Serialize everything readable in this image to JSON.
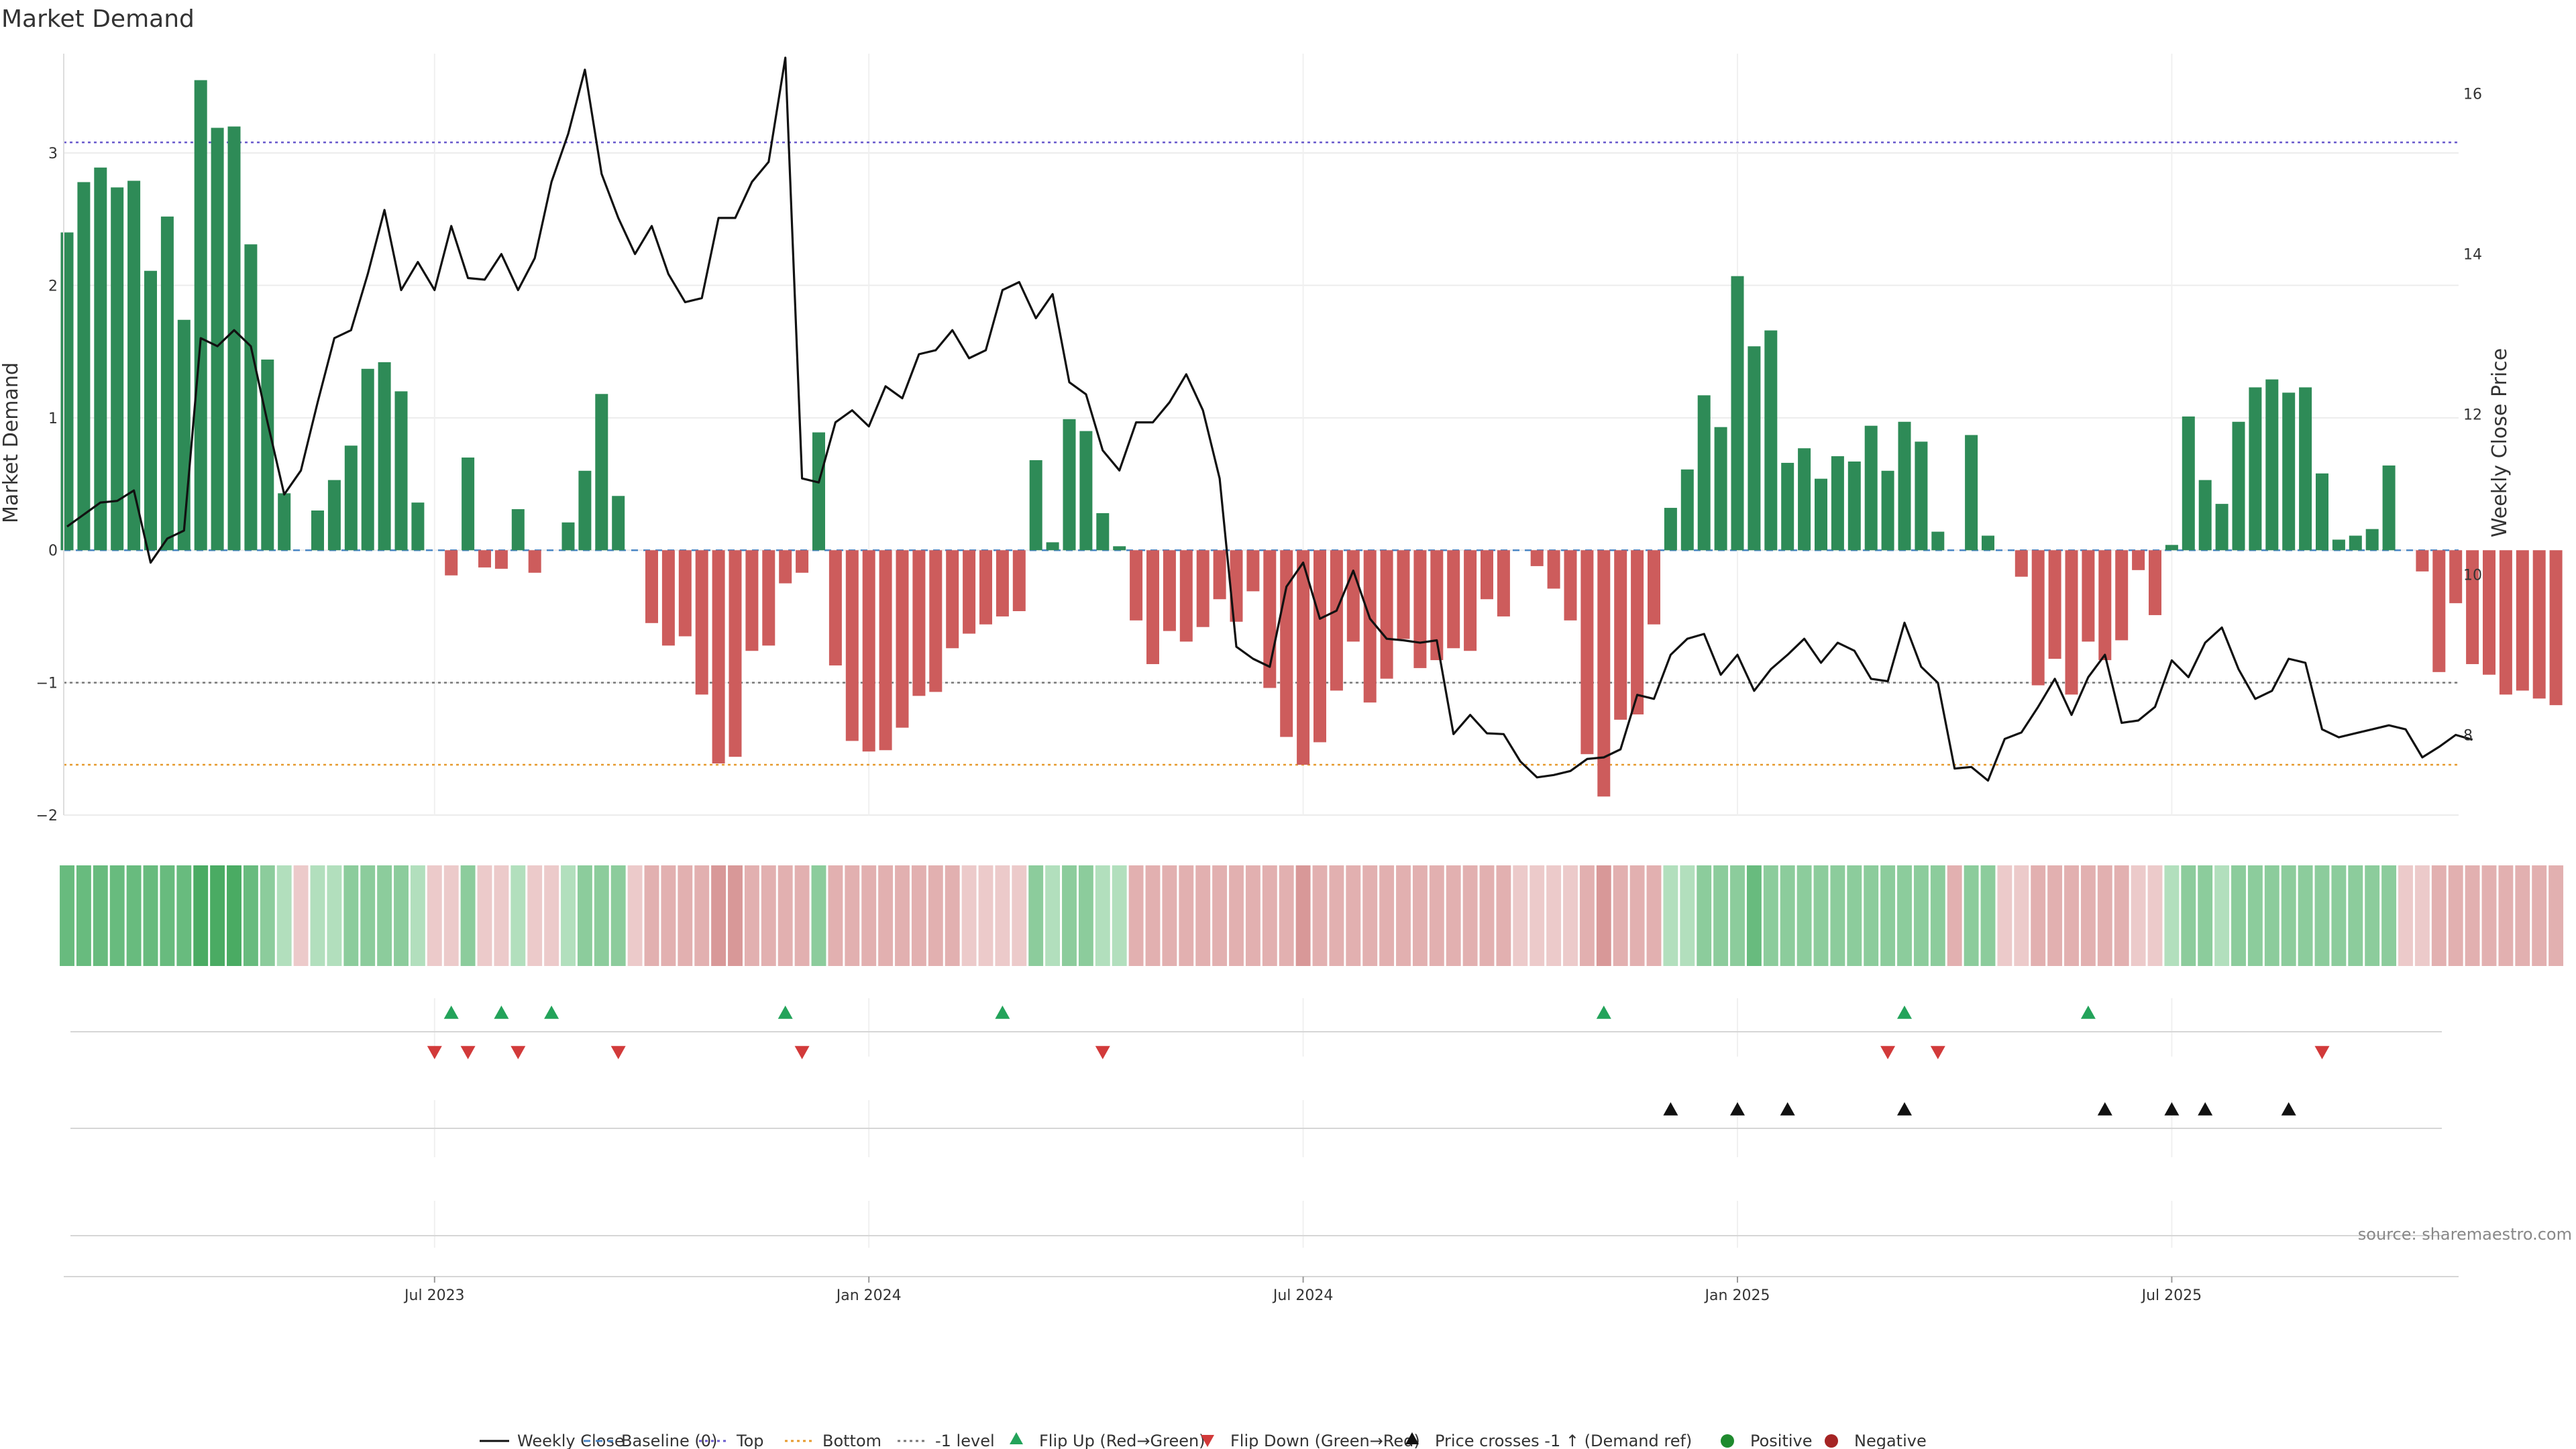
{
  "chart_data": {
    "type": "bar",
    "title": "Market Demand",
    "ylabel_left": "Market Demand",
    "ylabel_right": "Weekly Close Price",
    "source": "source: sharemaestro.com",
    "left_ylim": [
      -2.0,
      3.75
    ],
    "right_ylim": [
      7.0,
      16.5
    ],
    "left_ticks": [
      {
        "v": 3,
        "label": "3"
      },
      {
        "v": 2,
        "label": "2"
      },
      {
        "v": 1,
        "label": "1"
      },
      {
        "v": 0,
        "label": "0"
      },
      {
        "v": -1,
        "label": "−1"
      },
      {
        "v": -2,
        "label": "−2"
      }
    ],
    "right_ticks": [
      {
        "v": 16,
        "label": "16"
      },
      {
        "v": 14,
        "label": "14"
      },
      {
        "v": 12,
        "label": "12"
      },
      {
        "v": 10,
        "label": "10"
      },
      {
        "v": 8,
        "label": "8"
      }
    ],
    "x_ticks": [
      {
        "i": 22,
        "label": "Jul 2023"
      },
      {
        "i": 48,
        "label": "Jan 2024"
      },
      {
        "i": 74,
        "label": "Jul 2024"
      },
      {
        "i": 100,
        "label": "Jan 2025"
      },
      {
        "i": 126,
        "label": "Jul 2025"
      }
    ],
    "reference_lines": {
      "top": 3.08,
      "bottom": -1.62,
      "minus_one": -1.0
    },
    "demand": [
      2.4,
      2.78,
      2.89,
      2.74,
      2.79,
      2.11,
      2.52,
      1.74,
      3.55,
      3.19,
      3.2,
      2.31,
      1.44,
      0.43,
      0.0,
      0.3,
      0.53,
      0.79,
      1.37,
      1.42,
      1.2,
      0.36,
      0.0,
      -0.19,
      0.7,
      -0.13,
      -0.14,
      0.31,
      -0.17,
      0.0,
      0.21,
      0.6,
      1.18,
      0.41,
      0.0,
      -0.55,
      -0.72,
      -0.65,
      -1.09,
      -1.61,
      -1.56,
      -0.76,
      -0.72,
      -0.25,
      -0.17,
      0.89,
      -0.87,
      -1.44,
      -1.52,
      -1.51,
      -1.34,
      -1.1,
      -1.07,
      -0.74,
      -0.63,
      -0.56,
      -0.5,
      -0.46,
      0.68,
      0.06,
      0.99,
      0.9,
      0.28,
      0.03,
      -0.53,
      -0.86,
      -0.61,
      -0.69,
      -0.58,
      -0.37,
      -0.54,
      -0.31,
      -1.04,
      -1.41,
      -1.62,
      -1.45,
      -1.06,
      -0.69,
      -1.15,
      -0.97,
      -0.67,
      -0.89,
      -0.83,
      -0.74,
      -0.76,
      -0.37,
      -0.5,
      0.0,
      -0.12,
      -0.29,
      -0.53,
      -1.54,
      -1.86,
      -1.28,
      -1.24,
      -0.56,
      0.32,
      0.61,
      1.17,
      0.93,
      2.07,
      1.54,
      1.66,
      0.66,
      0.77,
      0.54,
      0.71,
      0.67,
      0.94,
      0.6,
      0.97,
      0.82,
      0.14,
      0.0,
      0.87,
      0.11,
      0.0,
      -0.2,
      -1.02,
      -0.82,
      -1.09,
      -0.69,
      -0.83,
      -0.68,
      -0.15,
      -0.49,
      0.04,
      1.01,
      0.53,
      0.35,
      0.97,
      1.23,
      1.29,
      1.19,
      1.23,
      0.58,
      0.08,
      0.11,
      0.16,
      0.64,
      0.0,
      -0.16,
      -0.92,
      -0.4,
      -0.86,
      -0.94,
      -1.09,
      -1.06,
      -1.12,
      -1.17
    ],
    "intensity": [
      3,
      3,
      3,
      3,
      3,
      3,
      3,
      3,
      4,
      4,
      4,
      3,
      2,
      1,
      1,
      1,
      1,
      2,
      2,
      2,
      2,
      1,
      1,
      1,
      2,
      1,
      1,
      1,
      1,
      1,
      1,
      2,
      2,
      2,
      1,
      2,
      2,
      2,
      2,
      3,
      3,
      2,
      2,
      2,
      2,
      2,
      2,
      2,
      2,
      2,
      2,
      2,
      2,
      2,
      1,
      1,
      1,
      1,
      2,
      1,
      2,
      2,
      1,
      1,
      2,
      2,
      2,
      2,
      2,
      2,
      2,
      2,
      2,
      2,
      3,
      2,
      2,
      2,
      2,
      2,
      2,
      2,
      2,
      2,
      2,
      2,
      2,
      1,
      1,
      1,
      1,
      2,
      3,
      2,
      2,
      2,
      1,
      1,
      2,
      2,
      2,
      3,
      2,
      2,
      2,
      2,
      2,
      2,
      2,
      2,
      2,
      2,
      2,
      2,
      2,
      2,
      1,
      1,
      2,
      2,
      2,
      2,
      2,
      2,
      1,
      1,
      1,
      2,
      2,
      1,
      2,
      2,
      2,
      2,
      2,
      2,
      2,
      2,
      2,
      2,
      1,
      1,
      2,
      2,
      2,
      2,
      2,
      2,
      2,
      2
    ],
    "price": [
      10.6,
      10.75,
      10.9,
      10.92,
      11.05,
      10.15,
      10.45,
      10.55,
      12.95,
      12.85,
      13.05,
      12.85,
      11.9,
      11.0,
      11.3,
      12.15,
      12.95,
      13.05,
      13.75,
      14.55,
      13.55,
      13.9,
      13.55,
      14.35,
      13.7,
      13.68,
      14.0,
      13.55,
      13.95,
      14.9,
      15.5,
      16.3,
      15.0,
      14.45,
      14.0,
      14.35,
      13.75,
      13.4,
      13.45,
      14.45,
      14.45,
      14.9,
      15.15,
      16.45,
      11.2,
      11.15,
      11.9,
      12.05,
      11.85,
      12.35,
      12.2,
      12.75,
      12.8,
      13.05,
      12.7,
      12.8,
      13.55,
      13.65,
      13.2,
      13.5,
      12.4,
      12.25,
      11.55,
      11.3,
      11.9,
      11.9,
      12.15,
      12.5,
      12.05,
      11.2,
      9.1,
      8.95,
      8.85,
      9.85,
      10.15,
      9.45,
      9.55,
      10.05,
      9.45,
      9.2,
      9.18,
      9.15,
      9.18,
      8.01,
      8.25,
      8.02,
      8.01,
      7.67,
      7.47,
      7.5,
      7.55,
      7.7,
      7.72,
      7.82,
      8.5,
      8.45,
      9.0,
      9.2,
      9.26,
      8.75,
      9.0,
      8.55,
      8.82,
      9.0,
      9.2,
      8.9,
      9.15,
      9.05,
      8.7,
      8.67,
      9.4,
      8.85,
      8.65,
      7.58,
      7.6,
      7.43,
      7.95,
      8.03,
      8.35,
      8.7,
      8.25,
      8.72,
      9.0,
      8.15,
      8.18,
      8.35,
      8.93,
      8.72,
      9.15,
      9.34,
      8.82,
      8.45,
      8.55,
      8.95,
      8.9,
      8.07,
      7.97,
      8.02,
      8.07,
      8.12,
      8.07,
      7.72,
      7.85,
      8.0,
      7.94
    ],
    "flip_up": [
      23,
      26,
      29,
      43,
      56,
      92,
      110,
      121
    ],
    "flip_down": [
      22,
      24,
      27,
      33,
      44,
      62,
      109,
      112,
      135
    ],
    "price_cross": [
      96,
      100,
      103,
      110,
      122,
      126,
      128,
      133
    ],
    "legend": [
      {
        "key": "weekly_close",
        "label": "Weekly Close"
      },
      {
        "key": "baseline",
        "label": "Baseline (0)"
      },
      {
        "key": "top",
        "label": "Top"
      },
      {
        "key": "bottom",
        "label": "Bottom"
      },
      {
        "key": "minus_one",
        "label": "-1 level"
      },
      {
        "key": "flip_up",
        "label": "Flip Up (Red→Green)"
      },
      {
        "key": "flip_down",
        "label": "Flip Down (Green→Red)"
      },
      {
        "key": "price_cross",
        "label": "Price crosses -1 ↑ (Demand ref)"
      },
      {
        "key": "positive",
        "label": "Positive"
      },
      {
        "key": "negative",
        "label": "Negative"
      }
    ],
    "colors": {
      "pos_bar": "#2e8b57",
      "neg_bar": "#cd5c5c",
      "price": "#111111",
      "top": "#6a5acd",
      "bottom": "#e69a2e",
      "minus_one": "#777777",
      "baseline": "#4a86c5",
      "flip_up": "#23a35a",
      "flip_down": "#d23a3a",
      "cross": "#111111",
      "pos_dot": "#1f8a2e",
      "neg_dot": "#a52424",
      "heat_pos": [
        "#d9efdd",
        "#b2dfbd",
        "#8ccc9c",
        "#68bb7e",
        "#4aab63"
      ],
      "heat_neg": [
        "#f4dcdc",
        "#eccaca",
        "#e2b0b0",
        "#d89898",
        "#cf8585"
      ]
    }
  }
}
